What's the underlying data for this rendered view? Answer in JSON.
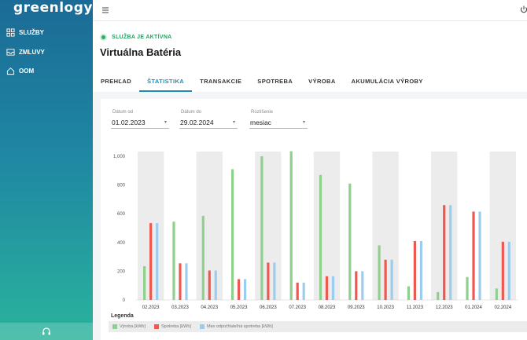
{
  "app": {
    "logo": "greenlogy"
  },
  "sidebar": {
    "items": [
      {
        "label": "SLUŽBY",
        "icon": "grid-icon"
      },
      {
        "label": "ZMLUVY",
        "icon": "inbox-icon"
      },
      {
        "label": "OOM",
        "icon": "home-icon"
      }
    ],
    "bottom_icon": "headset-icon"
  },
  "header": {
    "status": "SLUŽBA JE AKTÍVNA",
    "title": "Virtuálna Batéria",
    "tabs": [
      "PREHĽAD",
      "ŠTATISTIKA",
      "TRANSAKCIE",
      "SPOTREBA",
      "VÝROBA",
      "AKUMULÁCIA VÝROBY"
    ],
    "active_tab": "ŠTATISTIKA"
  },
  "filters": {
    "date_from": {
      "label": "Dátum od",
      "value": "01.02.2023"
    },
    "date_to": {
      "label": "Dátum do",
      "value": "29.02.2024"
    },
    "resolution": {
      "label": "Rozlíšenie",
      "value": "mesiac"
    }
  },
  "colors": {
    "vyroba": "#8fd08c",
    "spotreba": "#f2574f",
    "max": "#9dcdee",
    "band": "#ececec",
    "accent": "#1e8fb0"
  },
  "legend_title": "Legenda",
  "chart_data": {
    "type": "bar",
    "categories": [
      "02.2023",
      "03.2023",
      "04.2023",
      "05.2023",
      "06.2023",
      "07.2023",
      "08.2023",
      "09.2023",
      "10.2023",
      "11.2023",
      "12.2023",
      "01.2024",
      "02.2024"
    ],
    "series": [
      {
        "name": "Výroba [kWh]",
        "values": [
          235,
          545,
          585,
          910,
          1000,
          1035,
          870,
          810,
          380,
          95,
          55,
          160,
          80
        ]
      },
      {
        "name": "Spotreba [kWh]",
        "values": [
          535,
          255,
          205,
          145,
          260,
          120,
          165,
          200,
          280,
          410,
          660,
          615,
          405
        ]
      },
      {
        "name": "Max odpočítateľná spotreba [kWh]",
        "values": [
          535,
          255,
          205,
          145,
          260,
          120,
          165,
          200,
          280,
          410,
          660,
          615,
          405
        ]
      }
    ],
    "yticks": [
      "0",
      "200",
      "400",
      "600",
      "800",
      "1,000"
    ],
    "ylim": [
      0,
      1000
    ],
    "grid": false
  }
}
